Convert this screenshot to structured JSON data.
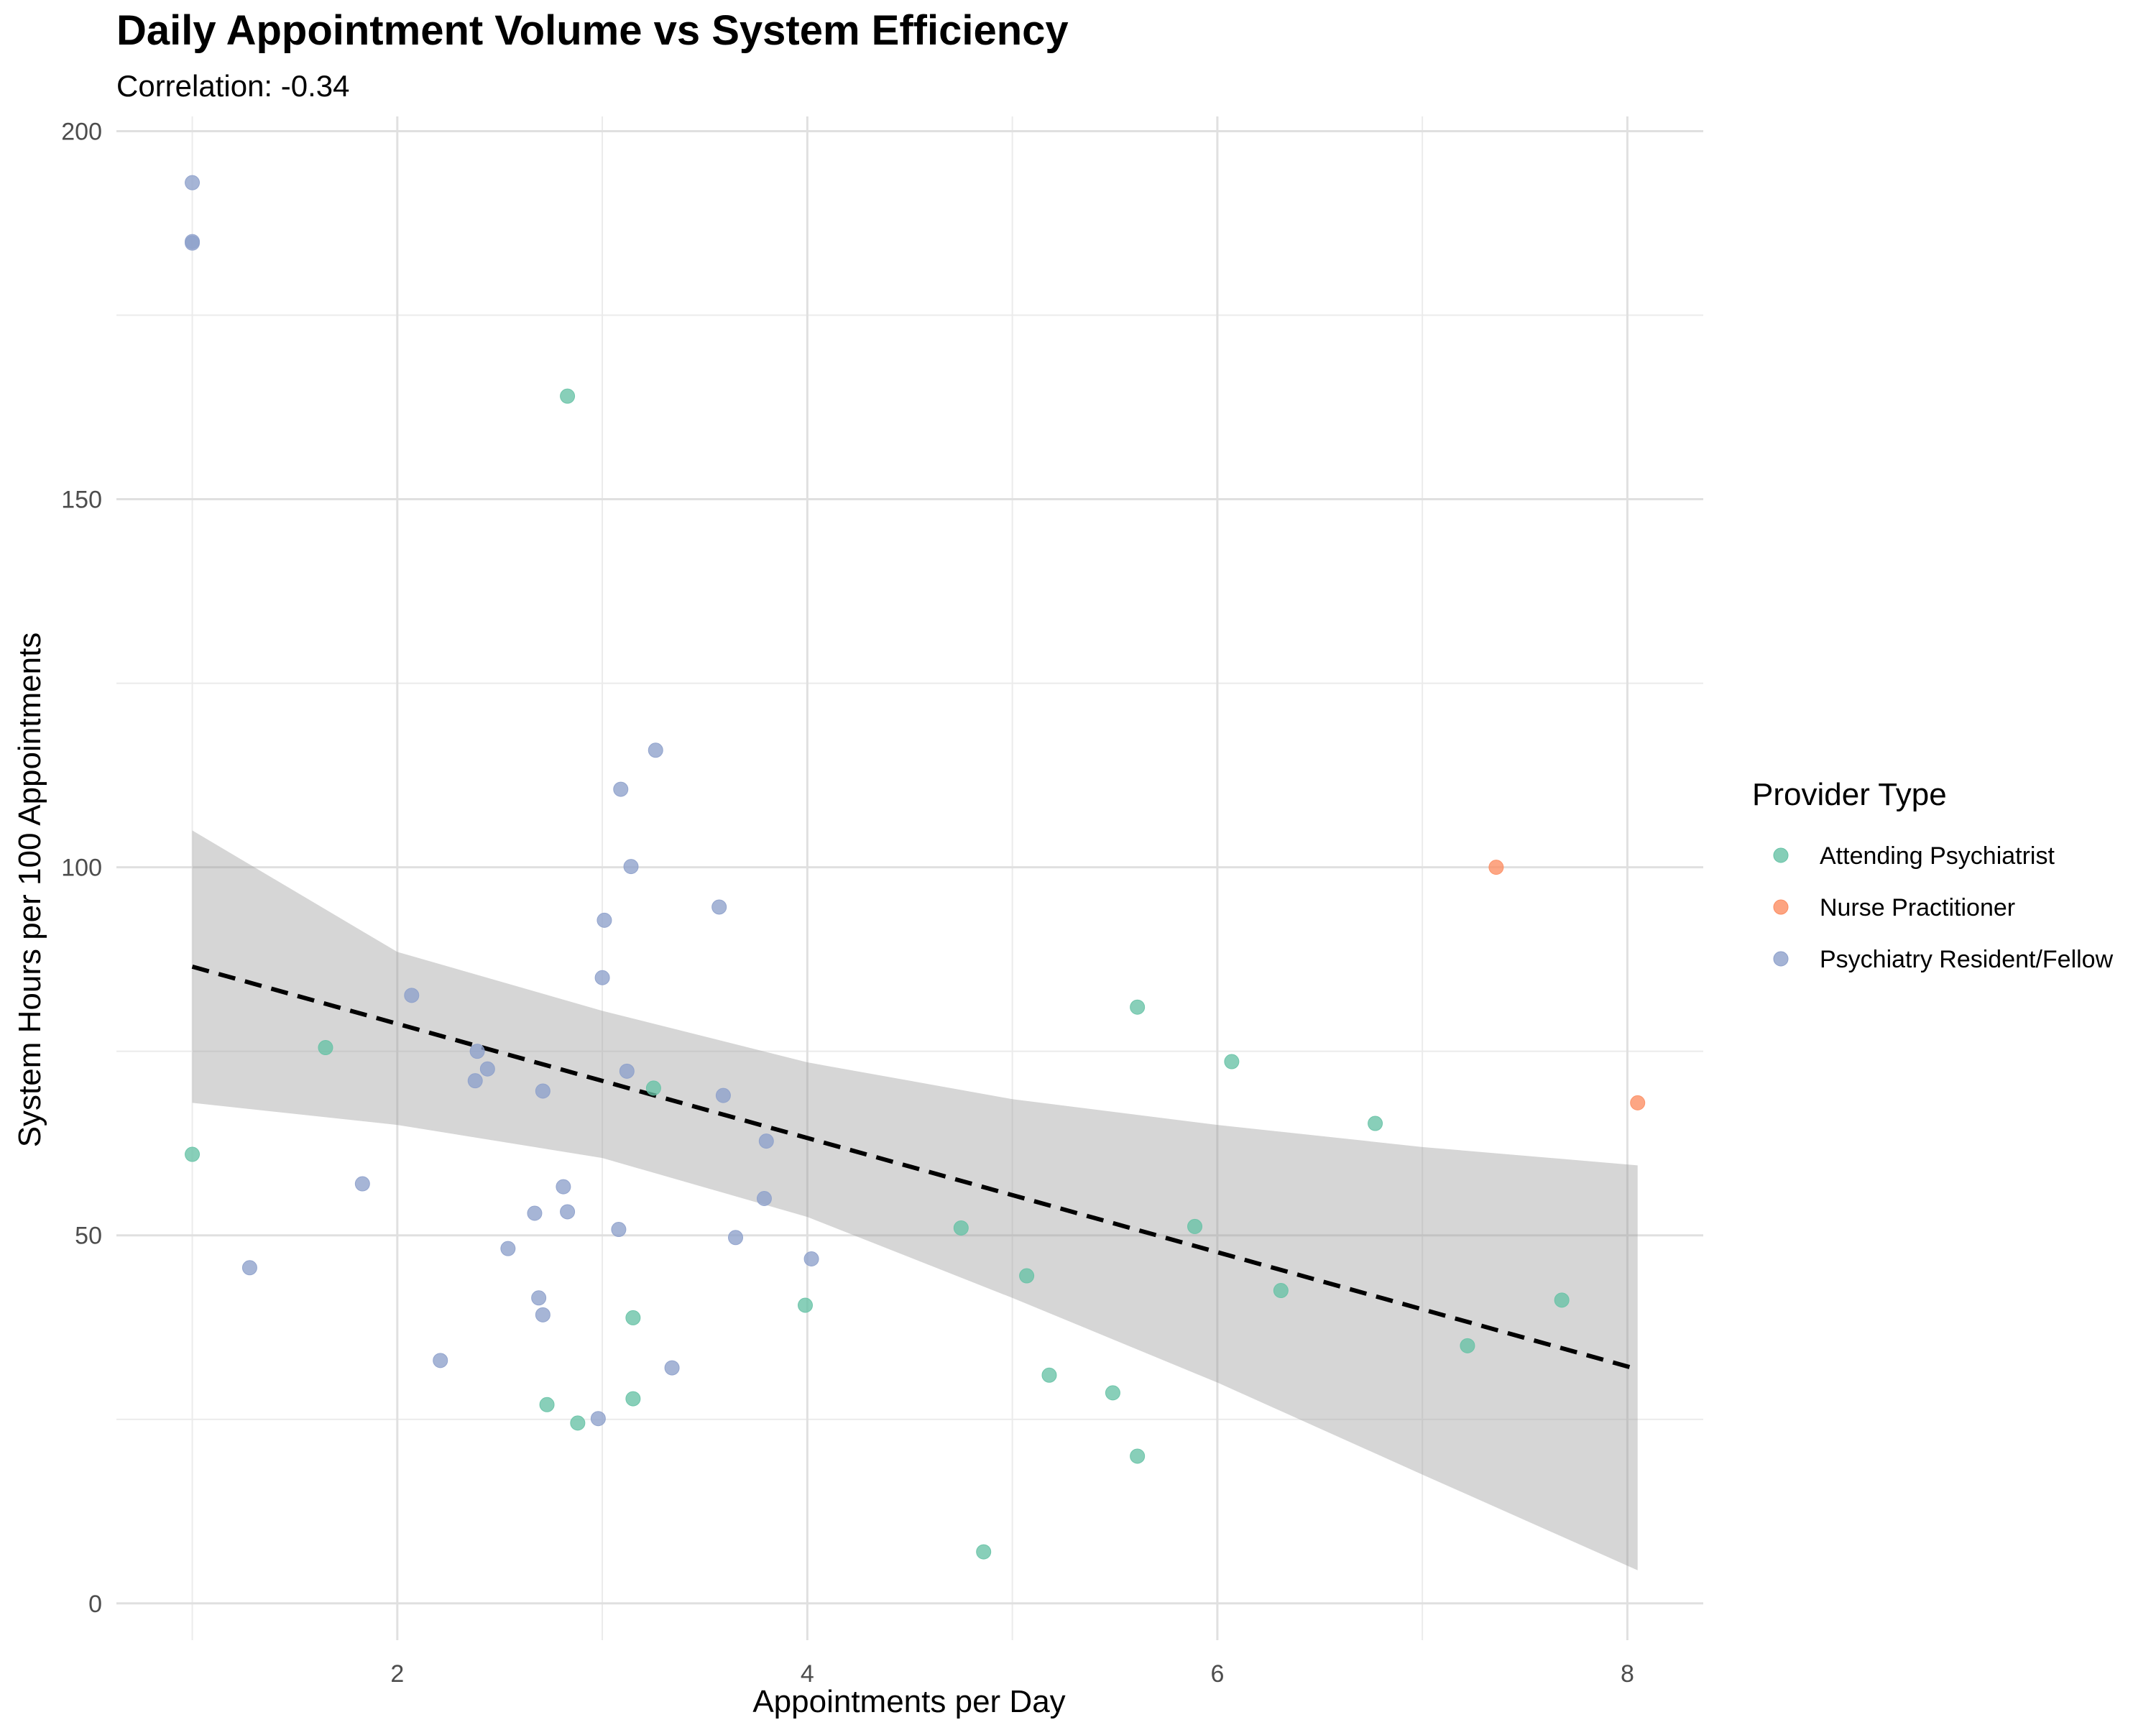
{
  "chart_data": {
    "type": "scatter",
    "title": "Daily Appointment Volume vs System Efficiency",
    "subtitle": "Correlation: -0.34",
    "xlabel": "Appointments per Day",
    "ylabel": "System Hours per 100 Appointments",
    "xlim": [
      0.63,
      8.37
    ],
    "ylim": [
      -5,
      202
    ],
    "x_ticks": [
      2,
      4,
      6,
      8
    ],
    "y_ticks": [
      0,
      50,
      100,
      150,
      200
    ],
    "grid": true,
    "legend_title": "Provider Type",
    "legend_position": "right",
    "series": [
      {
        "name": "Attending Psychiatrist",
        "color": "#66c2a5",
        "points": [
          [
            1.0,
            61
          ],
          [
            1.65,
            75.5
          ],
          [
            2.83,
            164
          ],
          [
            3.25,
            70
          ],
          [
            2.73,
            27
          ],
          [
            2.88,
            24.5
          ],
          [
            3.15,
            38.8
          ],
          [
            3.15,
            27.8
          ],
          [
            3.99,
            40.5
          ],
          [
            4.75,
            51
          ],
          [
            4.86,
            7
          ],
          [
            5.07,
            44.5
          ],
          [
            5.18,
            31
          ],
          [
            5.49,
            28.6
          ],
          [
            5.61,
            81
          ],
          [
            5.61,
            20
          ],
          [
            5.89,
            51.2
          ],
          [
            6.07,
            73.6
          ],
          [
            6.31,
            42.5
          ],
          [
            6.77,
            65.2
          ],
          [
            7.22,
            35
          ],
          [
            7.68,
            41.2
          ]
        ]
      },
      {
        "name": "Nurse Practitioner",
        "color": "#fc8d62",
        "points": [
          [
            7.36,
            100
          ],
          [
            8.05,
            68
          ]
        ]
      },
      {
        "name": "Psychiatry Resident/Fellow",
        "color": "#8da0cb",
        "points": [
          [
            1.0,
            193
          ],
          [
            1.0,
            185
          ],
          [
            1.0,
            184.8
          ],
          [
            1.28,
            45.6
          ],
          [
            1.83,
            57
          ],
          [
            2.07,
            82.6
          ],
          [
            2.21,
            33
          ],
          [
            2.39,
            75
          ],
          [
            2.38,
            71
          ],
          [
            2.44,
            72.6
          ],
          [
            2.54,
            48.2
          ],
          [
            2.67,
            53
          ],
          [
            2.69,
            41.5
          ],
          [
            2.71,
            39.2
          ],
          [
            2.71,
            69.6
          ],
          [
            2.81,
            56.6
          ],
          [
            2.83,
            53.2
          ],
          [
            2.98,
            25.1
          ],
          [
            3.0,
            85
          ],
          [
            3.01,
            92.8
          ],
          [
            3.08,
            50.8
          ],
          [
            3.09,
            110.6
          ],
          [
            3.12,
            72.3
          ],
          [
            3.14,
            100.1
          ],
          [
            3.26,
            115.9
          ],
          [
            3.34,
            32
          ],
          [
            3.57,
            94.6
          ],
          [
            3.59,
            69
          ],
          [
            3.65,
            49.7
          ],
          [
            3.79,
            55
          ],
          [
            3.8,
            62.8
          ],
          [
            4.02,
            46.8
          ]
        ]
      }
    ],
    "trend_line": {
      "style": "dashed",
      "color": "#000000",
      "x": [
        1.0,
        8.05
      ],
      "y": [
        86.5,
        31.8
      ]
    },
    "confidence_band": {
      "color": "#999999",
      "x": [
        1.0,
        2.0,
        3.0,
        4.0,
        5.0,
        6.0,
        7.0,
        8.05
      ],
      "lower": [
        68,
        65,
        60.5,
        52.5,
        41.5,
        30,
        17.5,
        4.5
      ],
      "upper": [
        105,
        88.5,
        80.5,
        73.5,
        68.5,
        65,
        62,
        59.5
      ]
    }
  }
}
